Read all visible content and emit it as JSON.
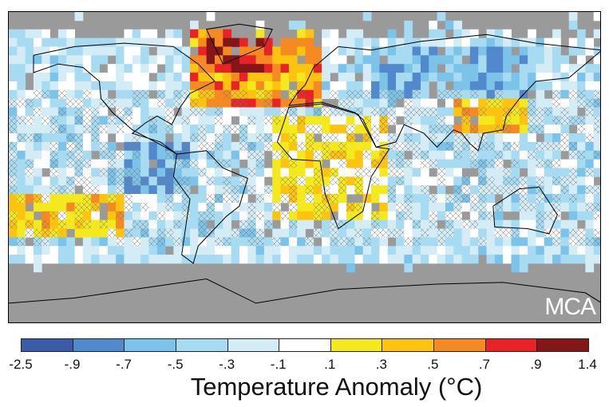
{
  "map": {
    "label": "MCA",
    "land_outline_color": "#000000",
    "missing_color": "#9a9a9a"
  },
  "legend": {
    "title": "Temperature Anomaly (°C)",
    "ticks": [
      "-2.5",
      "-.9",
      "-.7",
      "-.5",
      "-.3",
      "-.1",
      ".1",
      ".3",
      ".5",
      ".7",
      ".9",
      "1.4"
    ],
    "colors": [
      "#3a5ba8",
      "#5189cc",
      "#7cc3ea",
      "#a6dbf1",
      "#d4ecf6",
      "#ffffff",
      "#f3e91c",
      "#fdc40f",
      "#f58a23",
      "#e92227",
      "#851618"
    ]
  }
}
